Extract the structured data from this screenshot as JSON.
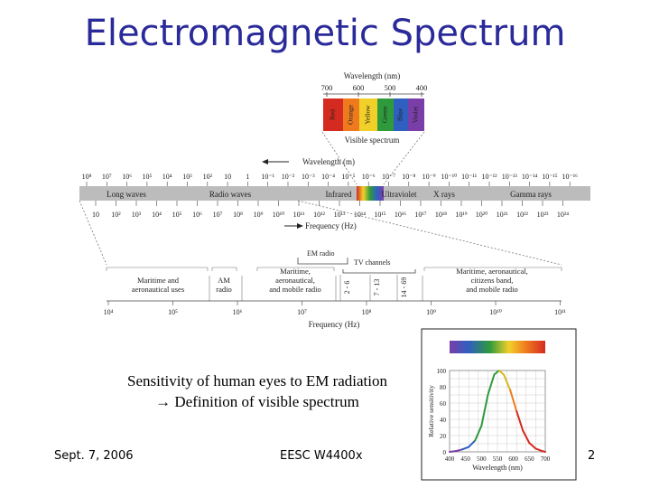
{
  "slide": {
    "title": "Electromagnetic Spectrum",
    "caption_line1": "Sensitivity of human eyes to EM radiation",
    "caption_line2": "→ Definition of visible spectrum",
    "footer_left": "Sept. 7, 2006",
    "footer_center": "EESC W4400x",
    "page_number": "2"
  },
  "visible": {
    "title": "Wavelength (nm)",
    "ticks": [
      "700",
      "600",
      "500",
      "400"
    ],
    "bands": [
      {
        "label": "Red",
        "color": "#d42a20"
      },
      {
        "label": "Orange",
        "color": "#ef7a1e"
      },
      {
        "label": "Yellow",
        "color": "#f2d02a"
      },
      {
        "label": "Green",
        "color": "#2e9a3c"
      },
      {
        "label": "Blue",
        "color": "#2f5fc0"
      },
      {
        "label": "Violet",
        "color": "#7a3ea8"
      }
    ],
    "footer": "Visible spectrum"
  },
  "main": {
    "wavelength_title": "Wavelength (m)",
    "wavelength_ticks": [
      "10⁸",
      "10⁷",
      "10⁶",
      "10⁵",
      "10⁴",
      "10³",
      "10²",
      "10",
      "1",
      "10⁻¹",
      "10⁻²",
      "10⁻³",
      "10⁻⁴",
      "10⁻⁵",
      "10⁻⁶",
      "10⁻⁷",
      "10⁻⁸",
      "10⁻⁹",
      "10⁻¹⁰",
      "10⁻¹¹",
      "10⁻¹²",
      "10⁻¹³",
      "10⁻¹⁴",
      "10⁻¹⁵",
      "10⁻¹⁶"
    ],
    "bands": [
      "Long waves",
      "Radio waves",
      "Infrared",
      "Ultraviolet",
      "X rays",
      "Gamma rays"
    ],
    "frequency_ticks": [
      "10",
      "10²",
      "10³",
      "10⁴",
      "10⁵",
      "10⁶",
      "10⁷",
      "10⁸",
      "10⁹",
      "10¹⁰",
      "10¹¹",
      "10¹²",
      "10¹³",
      "10¹⁴",
      "10¹⁵",
      "10¹⁶",
      "10¹⁷",
      "10¹⁸",
      "10¹⁹",
      "10²⁰",
      "10²¹",
      "10²²",
      "10²³",
      "10²⁴"
    ],
    "frequency_title": "Frequency (Hz)"
  },
  "radio": {
    "em_radio": "EM radio",
    "tv_channels": "TV channels",
    "channels": [
      "2 - 6",
      "7 - 13",
      "14 - 69"
    ],
    "labels": [
      [
        "Maritime and",
        "aeronautical uses"
      ],
      [
        "AM",
        "radio"
      ],
      [
        "Maritime,",
        "aeronautical,",
        "and mobile radio"
      ],
      [
        "Maritime, aeronautical,",
        "citizens band,",
        "and mobile radio"
      ]
    ],
    "ticks": [
      "10⁴",
      "10⁵",
      "10⁶",
      "10⁷",
      "10⁸",
      "10⁹",
      "10¹⁰",
      "10¹¹"
    ],
    "frequency_title": "Frequency (Hz)"
  },
  "chart_data": {
    "type": "line",
    "title": "",
    "xlabel": "Wavelength (nm)",
    "ylabel": "Relative sensitivity",
    "xlim": [
      400,
      700
    ],
    "ylim": [
      0,
      100
    ],
    "x_ticks": [
      "400",
      "450",
      "500",
      "550",
      "600",
      "650",
      "700"
    ],
    "y_ticks": [
      "0",
      "20",
      "40",
      "60",
      "80",
      "100"
    ],
    "grid": true,
    "series": [
      {
        "x": [
          400,
          420,
          440,
          460,
          480,
          500,
          520,
          540,
          555,
          570,
          590,
          610,
          630,
          650,
          670,
          690,
          700
        ],
        "values": [
          0,
          1,
          3,
          6,
          14,
          32,
          70,
          95,
          100,
          95,
          76,
          50,
          26,
          11,
          4,
          1,
          0
        ]
      }
    ]
  }
}
